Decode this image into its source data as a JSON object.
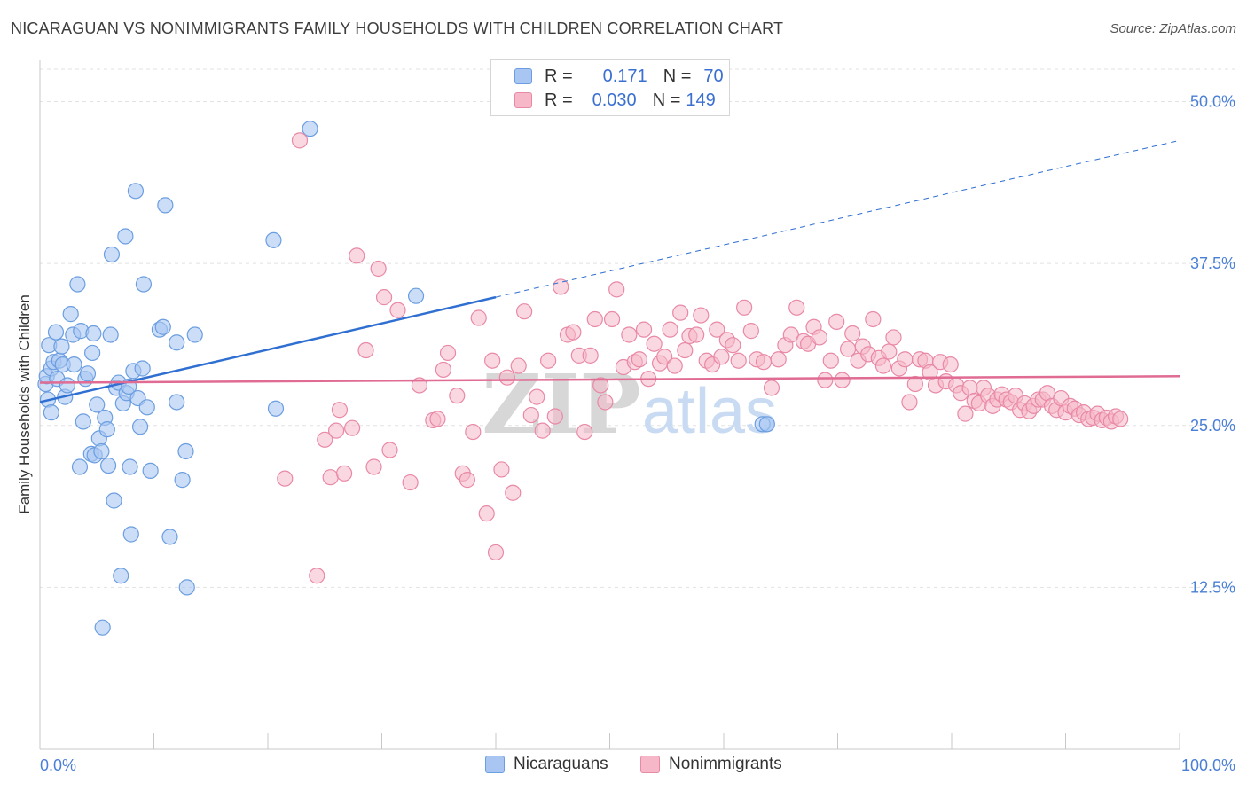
{
  "title": "NICARAGUAN VS NONIMMIGRANTS FAMILY HOUSEHOLDS WITH CHILDREN CORRELATION CHART",
  "source": "Source: ZipAtlas.com",
  "stats": {
    "r_label": "R =",
    "n_label": "N =",
    "series1": {
      "r": "0.171",
      "n": "70"
    },
    "series2": {
      "r": "0.030",
      "n": "149"
    }
  },
  "legend": {
    "series1": "Nicaraguans",
    "series2": "Nonimmigrants"
  },
  "colors": {
    "series1_fill": "#a9c6f2",
    "series1_stroke": "#6b9ee0",
    "series1_line": "#2f6fd1",
    "series2_fill": "#f6b8c9",
    "series2_stroke": "#e889a6",
    "series2_line": "#e06b93",
    "tick_label": "#4a7fd6",
    "grid": "#e2e2e2"
  },
  "chart_data": {
    "type": "scatter",
    "title": "NICARAGUAN VS NONIMMIGRANTS FAMILY HOUSEHOLDS WITH CHILDREN CORRELATION CHART",
    "xlabel": "",
    "ylabel": "Family Households with Children",
    "xlim": [
      0,
      100
    ],
    "ylim": [
      0,
      52.5
    ],
    "x_tick_labels": [
      "0.0%",
      "100.0%"
    ],
    "y_ticks": [
      12.5,
      25.0,
      37.5,
      50.0
    ],
    "y_tick_labels": [
      "12.5%",
      "25.0%",
      "37.5%",
      "50.0%"
    ],
    "grid": true,
    "legend_position": "bottom-center",
    "watermark": "ZIPatlas",
    "series": [
      {
        "name": "Nicaraguans",
        "trend": {
          "x": [
            0,
            40
          ],
          "y": [
            26.8,
            34.9
          ],
          "dashed_to": [
            100,
            47.0
          ]
        },
        "points": [
          [
            0.5,
            28.2
          ],
          [
            0.6,
            28.8
          ],
          [
            0.7,
            27.0
          ],
          [
            0.8,
            31.2
          ],
          [
            1.0,
            29.4
          ],
          [
            1.0,
            26.0
          ],
          [
            1.2,
            29.9
          ],
          [
            1.4,
            32.2
          ],
          [
            1.5,
            28.6
          ],
          [
            1.7,
            30.0
          ],
          [
            1.9,
            31.1
          ],
          [
            2.0,
            29.7
          ],
          [
            2.2,
            27.2
          ],
          [
            2.4,
            28.1
          ],
          [
            2.7,
            33.6
          ],
          [
            2.9,
            32.0
          ],
          [
            3.0,
            29.7
          ],
          [
            3.3,
            35.9
          ],
          [
            3.5,
            21.8
          ],
          [
            3.6,
            32.3
          ],
          [
            3.8,
            25.3
          ],
          [
            4.0,
            28.6
          ],
          [
            4.2,
            29.0
          ],
          [
            4.5,
            22.8
          ],
          [
            4.6,
            30.6
          ],
          [
            4.7,
            32.1
          ],
          [
            4.8,
            22.7
          ],
          [
            5.0,
            26.6
          ],
          [
            5.2,
            24.0
          ],
          [
            5.4,
            23.0
          ],
          [
            5.5,
            9.4
          ],
          [
            5.7,
            25.6
          ],
          [
            5.9,
            24.7
          ],
          [
            6.0,
            21.9
          ],
          [
            6.2,
            32.0
          ],
          [
            6.3,
            38.2
          ],
          [
            6.5,
            19.2
          ],
          [
            6.7,
            27.9
          ],
          [
            6.9,
            28.3
          ],
          [
            7.1,
            13.4
          ],
          [
            7.3,
            26.7
          ],
          [
            7.5,
            39.6
          ],
          [
            7.6,
            27.5
          ],
          [
            7.8,
            28.0
          ],
          [
            7.9,
            21.8
          ],
          [
            8.0,
            16.6
          ],
          [
            8.2,
            29.2
          ],
          [
            8.4,
            43.1
          ],
          [
            8.6,
            27.1
          ],
          [
            8.8,
            24.9
          ],
          [
            9.0,
            29.4
          ],
          [
            9.1,
            35.9
          ],
          [
            9.4,
            26.4
          ],
          [
            9.7,
            21.5
          ],
          [
            10.5,
            32.4
          ],
          [
            10.8,
            32.6
          ],
          [
            11.0,
            42.0
          ],
          [
            11.4,
            16.4
          ],
          [
            12.0,
            26.8
          ],
          [
            12.0,
            31.4
          ],
          [
            12.5,
            20.8
          ],
          [
            12.8,
            23.0
          ],
          [
            12.9,
            12.5
          ],
          [
            13.6,
            32.0
          ],
          [
            20.5,
            39.3
          ],
          [
            20.7,
            26.3
          ],
          [
            23.7,
            47.9
          ],
          [
            33.0,
            35.0
          ],
          [
            63.4,
            25.1
          ],
          [
            63.8,
            25.1
          ]
        ]
      },
      {
        "name": "Nonimmigrants",
        "trend": {
          "x": [
            0,
            100
          ],
          "y": [
            28.3,
            28.8
          ]
        },
        "points": [
          [
            21.5,
            20.9
          ],
          [
            22.8,
            47.0
          ],
          [
            24.3,
            13.4
          ],
          [
            25.0,
            23.9
          ],
          [
            25.5,
            21.0
          ],
          [
            26.0,
            24.6
          ],
          [
            26.3,
            26.2
          ],
          [
            26.7,
            21.3
          ],
          [
            27.4,
            24.8
          ],
          [
            27.8,
            38.1
          ],
          [
            28.6,
            30.8
          ],
          [
            29.3,
            21.8
          ],
          [
            29.7,
            37.1
          ],
          [
            30.2,
            34.9
          ],
          [
            30.7,
            23.1
          ],
          [
            31.4,
            33.9
          ],
          [
            32.5,
            20.6
          ],
          [
            33.3,
            28.1
          ],
          [
            34.5,
            25.4
          ],
          [
            34.9,
            25.5
          ],
          [
            35.4,
            29.3
          ],
          [
            35.8,
            30.6
          ],
          [
            36.6,
            27.3
          ],
          [
            37.1,
            21.3
          ],
          [
            37.5,
            20.8
          ],
          [
            38.0,
            24.5
          ],
          [
            38.5,
            33.3
          ],
          [
            39.2,
            18.2
          ],
          [
            39.7,
            30.0
          ],
          [
            40.0,
            15.2
          ],
          [
            40.5,
            21.6
          ],
          [
            41.0,
            28.7
          ],
          [
            41.5,
            19.8
          ],
          [
            42.0,
            29.6
          ],
          [
            42.5,
            33.8
          ],
          [
            43.1,
            25.8
          ],
          [
            43.6,
            27.2
          ],
          [
            44.1,
            24.6
          ],
          [
            44.6,
            30.0
          ],
          [
            45.2,
            25.7
          ],
          [
            45.7,
            35.7
          ],
          [
            46.3,
            32.0
          ],
          [
            46.8,
            32.2
          ],
          [
            47.3,
            30.4
          ],
          [
            47.8,
            24.5
          ],
          [
            48.3,
            30.4
          ],
          [
            48.7,
            33.2
          ],
          [
            49.2,
            28.1
          ],
          [
            49.6,
            26.8
          ],
          [
            50.2,
            33.2
          ],
          [
            50.6,
            35.5
          ],
          [
            51.2,
            29.5
          ],
          [
            51.7,
            32.0
          ],
          [
            52.2,
            29.9
          ],
          [
            52.6,
            30.1
          ],
          [
            53.0,
            32.4
          ],
          [
            53.4,
            28.6
          ],
          [
            53.9,
            31.3
          ],
          [
            54.4,
            29.8
          ],
          [
            54.8,
            30.3
          ],
          [
            55.3,
            32.4
          ],
          [
            55.7,
            29.6
          ],
          [
            56.2,
            33.7
          ],
          [
            56.6,
            30.8
          ],
          [
            57.0,
            31.9
          ],
          [
            57.6,
            32.0
          ],
          [
            58.0,
            33.5
          ],
          [
            58.5,
            30.0
          ],
          [
            59.0,
            29.7
          ],
          [
            59.4,
            32.4
          ],
          [
            59.8,
            30.3
          ],
          [
            60.3,
            31.6
          ],
          [
            60.8,
            31.2
          ],
          [
            61.3,
            30.0
          ],
          [
            61.8,
            34.1
          ],
          [
            62.4,
            32.3
          ],
          [
            62.9,
            30.1
          ],
          [
            63.5,
            29.9
          ],
          [
            64.2,
            27.9
          ],
          [
            64.8,
            30.1
          ],
          [
            65.4,
            31.2
          ],
          [
            65.9,
            32.0
          ],
          [
            66.4,
            34.1
          ],
          [
            67.0,
            31.5
          ],
          [
            67.4,
            31.3
          ],
          [
            67.9,
            32.6
          ],
          [
            68.4,
            31.8
          ],
          [
            68.9,
            28.5
          ],
          [
            69.4,
            30.0
          ],
          [
            69.9,
            33.0
          ],
          [
            70.4,
            28.5
          ],
          [
            70.9,
            30.9
          ],
          [
            71.3,
            32.1
          ],
          [
            71.8,
            30.0
          ],
          [
            72.2,
            31.1
          ],
          [
            72.7,
            30.5
          ],
          [
            73.1,
            33.2
          ],
          [
            73.6,
            30.2
          ],
          [
            74.0,
            29.6
          ],
          [
            74.5,
            30.7
          ],
          [
            74.9,
            31.8
          ],
          [
            75.4,
            29.4
          ],
          [
            75.9,
            30.1
          ],
          [
            76.3,
            26.8
          ],
          [
            76.8,
            28.2
          ],
          [
            77.2,
            30.1
          ],
          [
            77.7,
            30.0
          ],
          [
            78.1,
            29.1
          ],
          [
            78.6,
            28.1
          ],
          [
            79.0,
            29.9
          ],
          [
            79.5,
            28.4
          ],
          [
            79.9,
            29.7
          ],
          [
            80.4,
            28.1
          ],
          [
            80.8,
            27.5
          ],
          [
            81.2,
            25.9
          ],
          [
            81.6,
            27.9
          ],
          [
            82.0,
            26.9
          ],
          [
            82.4,
            26.7
          ],
          [
            82.8,
            27.9
          ],
          [
            83.2,
            27.3
          ],
          [
            83.6,
            26.5
          ],
          [
            84.0,
            27.0
          ],
          [
            84.4,
            27.4
          ],
          [
            84.8,
            27.0
          ],
          [
            85.2,
            26.8
          ],
          [
            85.6,
            27.3
          ],
          [
            86.0,
            26.2
          ],
          [
            86.4,
            26.7
          ],
          [
            86.8,
            26.1
          ],
          [
            87.2,
            26.5
          ],
          [
            87.6,
            27.0
          ],
          [
            88.0,
            27.0
          ],
          [
            88.4,
            27.5
          ],
          [
            88.8,
            26.5
          ],
          [
            89.2,
            26.2
          ],
          [
            89.6,
            27.1
          ],
          [
            90.0,
            26.0
          ],
          [
            90.4,
            26.5
          ],
          [
            90.8,
            26.3
          ],
          [
            91.2,
            25.8
          ],
          [
            91.6,
            26.0
          ],
          [
            92.0,
            25.5
          ],
          [
            92.4,
            25.6
          ],
          [
            92.8,
            25.9
          ],
          [
            93.2,
            25.4
          ],
          [
            93.6,
            25.6
          ],
          [
            94.0,
            25.3
          ],
          [
            94.4,
            25.7
          ],
          [
            94.8,
            25.5
          ]
        ]
      }
    ]
  }
}
